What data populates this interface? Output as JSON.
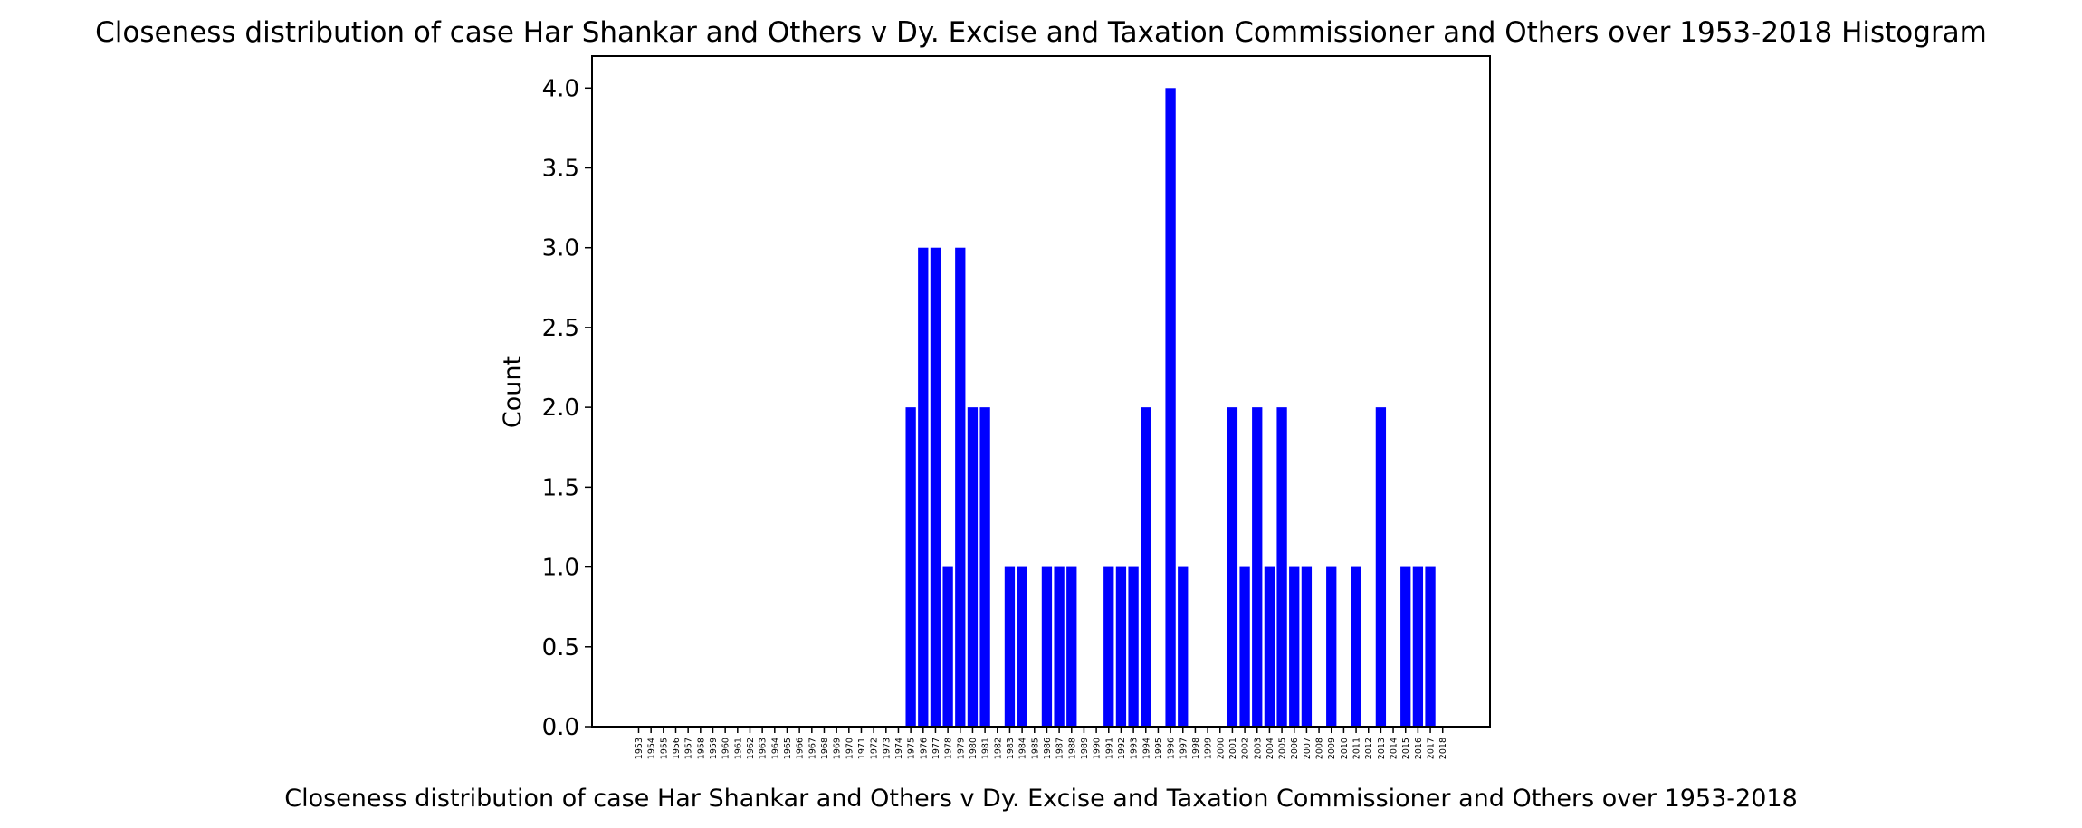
{
  "chart_data": {
    "type": "bar",
    "title": "Closeness distribution of case Har Shankar and Others v Dy. Excise and Taxation Commissioner and Others over 1953-2018 Histogram",
    "xlabel": "Closeness distribution of case Har Shankar and Others v Dy. Excise and Taxation Commissioner and Others over 1953-2018",
    "ylabel": "Count",
    "ylim": [
      0,
      4.2
    ],
    "yticks": [
      "0.0",
      "0.5",
      "1.0",
      "1.5",
      "2.0",
      "2.5",
      "3.0",
      "3.5",
      "4.0"
    ],
    "grid": false,
    "bar_color": "#0000ff",
    "categories": [
      "1953",
      "1954",
      "1955",
      "1956",
      "1957",
      "1958",
      "1959",
      "1960",
      "1961",
      "1962",
      "1963",
      "1964",
      "1965",
      "1966",
      "1967",
      "1968",
      "1969",
      "1970",
      "1971",
      "1972",
      "1973",
      "1974",
      "1975",
      "1976",
      "1977",
      "1978",
      "1979",
      "1980",
      "1981",
      "1982",
      "1983",
      "1984",
      "1985",
      "1986",
      "1987",
      "1988",
      "1989",
      "1990",
      "1991",
      "1992",
      "1993",
      "1994",
      "1995",
      "1996",
      "1997",
      "1998",
      "1999",
      "2000",
      "2001",
      "2002",
      "2003",
      "2004",
      "2005",
      "2006",
      "2007",
      "2008",
      "2009",
      "2010",
      "2011",
      "2012",
      "2013",
      "2014",
      "2015",
      "2016",
      "2017",
      "2018"
    ],
    "values": [
      0,
      0,
      0,
      0,
      0,
      0,
      0,
      0,
      0,
      0,
      0,
      0,
      0,
      0,
      0,
      0,
      0,
      0,
      0,
      0,
      0,
      0,
      2,
      3,
      3,
      1,
      3,
      2,
      2,
      0,
      1,
      1,
      0,
      1,
      1,
      1,
      0,
      0,
      1,
      1,
      1,
      2,
      0,
      4,
      1,
      0,
      0,
      0,
      2,
      1,
      2,
      1,
      2,
      1,
      1,
      0,
      1,
      0,
      1,
      0,
      2,
      0,
      1,
      1,
      1,
      0
    ]
  }
}
